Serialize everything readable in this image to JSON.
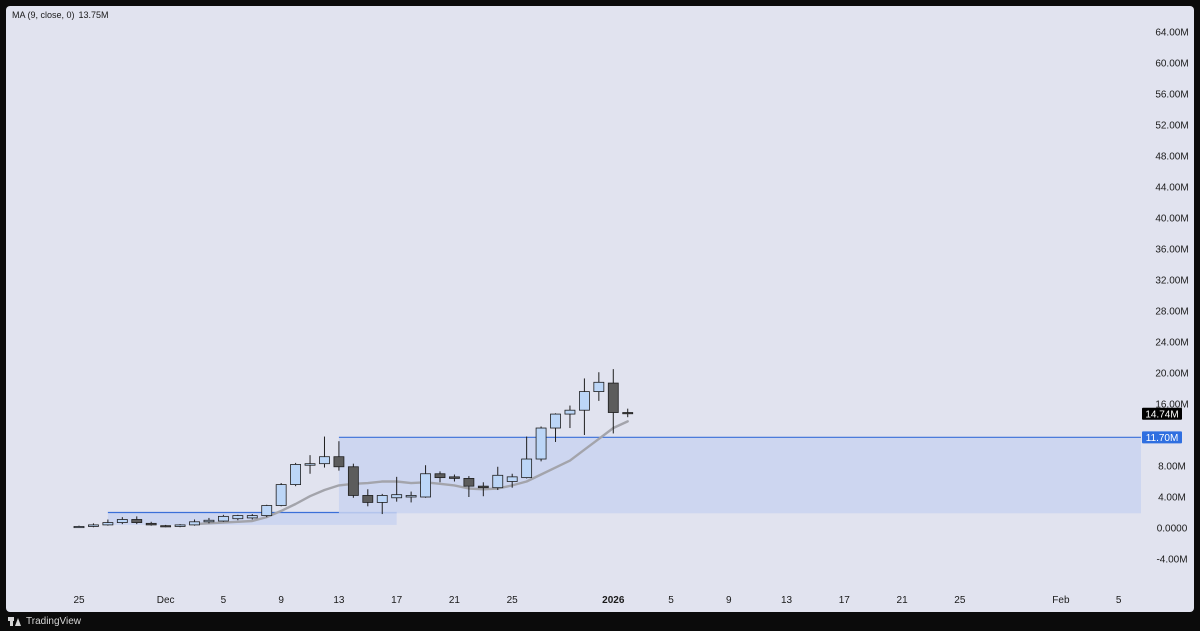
{
  "indicator": {
    "name": "MA (9, close, 0)",
    "value": "13.75M"
  },
  "brand": "TradingView",
  "colors": {
    "up_fill": "#bcd6f7",
    "down_fill": "#5c5c5c",
    "wick": "#1e1e1e",
    "ma_line": "#a3a4ab",
    "zone_fill": "#c9d4f0",
    "zone_line": "#3a6fd8",
    "label_highlight": "#2f6fe0",
    "last_price_bg": "#000000"
  },
  "chart_data": {
    "type": "candlestick",
    "title": "",
    "xlabel": "",
    "ylabel": "",
    "ylim": [
      -6000000,
      66000000
    ],
    "y_ticks": [
      {
        "value": 64000000,
        "label": "64.00M"
      },
      {
        "value": 60000000,
        "label": "60.00M"
      },
      {
        "value": 56000000,
        "label": "56.00M"
      },
      {
        "value": 52000000,
        "label": "52.00M"
      },
      {
        "value": 48000000,
        "label": "48.00M"
      },
      {
        "value": 44000000,
        "label": "44.00M"
      },
      {
        "value": 40000000,
        "label": "40.00M"
      },
      {
        "value": 36000000,
        "label": "36.00M"
      },
      {
        "value": 32000000,
        "label": "32.00M"
      },
      {
        "value": 28000000,
        "label": "28.00M"
      },
      {
        "value": 24000000,
        "label": "24.00M"
      },
      {
        "value": 20000000,
        "label": "20.00M"
      },
      {
        "value": 16000000,
        "label": "16.00M"
      },
      {
        "value": 8000000,
        "label": "8.00M"
      },
      {
        "value": 4000000,
        "label": "4.00M"
      },
      {
        "value": 0,
        "label": "0.0000"
      },
      {
        "value": -4000000,
        "label": "-4.00M"
      }
    ],
    "x_ticks": [
      {
        "date": "2025-11-25",
        "label": "25",
        "bold": false
      },
      {
        "date": "2025-12-01",
        "label": "Dec",
        "bold": false
      },
      {
        "date": "2025-12-05",
        "label": "5",
        "bold": false
      },
      {
        "date": "2025-12-09",
        "label": "9",
        "bold": false
      },
      {
        "date": "2025-12-13",
        "label": "13",
        "bold": false
      },
      {
        "date": "2025-12-17",
        "label": "17",
        "bold": false
      },
      {
        "date": "2025-12-21",
        "label": "21",
        "bold": false
      },
      {
        "date": "2025-12-25",
        "label": "25",
        "bold": false
      },
      {
        "date": "2026-01-01",
        "label": "2026",
        "bold": true
      },
      {
        "date": "2026-01-05",
        "label": "5",
        "bold": false
      },
      {
        "date": "2026-01-09",
        "label": "9",
        "bold": false
      },
      {
        "date": "2026-01-13",
        "label": "13",
        "bold": false
      },
      {
        "date": "2026-01-17",
        "label": "17",
        "bold": false
      },
      {
        "date": "2026-01-21",
        "label": "21",
        "bold": false
      },
      {
        "date": "2026-01-25",
        "label": "25",
        "bold": false
      },
      {
        "date": "2026-02-01",
        "label": "Feb",
        "bold": false
      },
      {
        "date": "2026-02-05",
        "label": "5",
        "bold": false
      }
    ],
    "candles": [
      {
        "date": "2025-11-25",
        "open": 0.1,
        "high": 0.3,
        "low": 0.0,
        "close": 0.2
      },
      {
        "date": "2025-11-26",
        "open": 0.2,
        "high": 0.6,
        "low": 0.1,
        "close": 0.4
      },
      {
        "date": "2025-11-27",
        "open": 0.4,
        "high": 1.1,
        "low": 0.3,
        "close": 0.7
      },
      {
        "date": "2025-11-28",
        "open": 0.7,
        "high": 1.4,
        "low": 0.5,
        "close": 1.1
      },
      {
        "date": "2025-11-29",
        "open": 1.1,
        "high": 1.5,
        "low": 0.5,
        "close": 0.7
      },
      {
        "date": "2025-11-30",
        "open": 0.6,
        "high": 0.8,
        "low": 0.3,
        "close": 0.4
      },
      {
        "date": "2025-12-01",
        "open": 0.3,
        "high": 0.4,
        "low": 0.1,
        "close": 0.2
      },
      {
        "date": "2025-12-02",
        "open": 0.2,
        "high": 0.5,
        "low": 0.1,
        "close": 0.4
      },
      {
        "date": "2025-12-03",
        "open": 0.4,
        "high": 1.1,
        "low": 0.3,
        "close": 0.8
      },
      {
        "date": "2025-12-04",
        "open": 0.8,
        "high": 1.3,
        "low": 0.6,
        "close": 1.0
      },
      {
        "date": "2025-12-05",
        "open": 0.9,
        "high": 1.7,
        "low": 0.8,
        "close": 1.5
      },
      {
        "date": "2025-12-06",
        "open": 1.2,
        "high": 1.7,
        "low": 1.0,
        "close": 1.6
      },
      {
        "date": "2025-12-07",
        "open": 1.3,
        "high": 1.8,
        "low": 1.1,
        "close": 1.6
      },
      {
        "date": "2025-12-08",
        "open": 1.6,
        "high": 3.0,
        "low": 1.4,
        "close": 2.9
      },
      {
        "date": "2025-12-09",
        "open": 2.9,
        "high": 5.8,
        "low": 2.8,
        "close": 5.6
      },
      {
        "date": "2025-12-10",
        "open": 5.6,
        "high": 8.4,
        "low": 5.4,
        "close": 8.2
      },
      {
        "date": "2025-12-11",
        "open": 8.1,
        "high": 9.4,
        "low": 7.0,
        "close": 8.3
      },
      {
        "date": "2025-12-12",
        "open": 8.3,
        "high": 11.8,
        "low": 7.8,
        "close": 9.2
      },
      {
        "date": "2025-12-13",
        "open": 9.2,
        "high": 11.2,
        "low": 7.4,
        "close": 7.9
      },
      {
        "date": "2025-12-14",
        "open": 7.9,
        "high": 8.3,
        "low": 3.9,
        "close": 4.2
      },
      {
        "date": "2025-12-15",
        "open": 4.2,
        "high": 5.0,
        "low": 2.8,
        "close": 3.3
      },
      {
        "date": "2025-12-16",
        "open": 3.3,
        "high": 4.4,
        "low": 1.8,
        "close": 4.2
      },
      {
        "date": "2025-12-17",
        "open": 3.9,
        "high": 6.6,
        "low": 3.4,
        "close": 4.3
      },
      {
        "date": "2025-12-18",
        "open": 4.0,
        "high": 4.7,
        "low": 3.3,
        "close": 4.2
      },
      {
        "date": "2025-12-19",
        "open": 4.0,
        "high": 8.1,
        "low": 3.9,
        "close": 7.0
      },
      {
        "date": "2025-12-20",
        "open": 7.0,
        "high": 7.3,
        "low": 5.9,
        "close": 6.5
      },
      {
        "date": "2025-12-21",
        "open": 6.6,
        "high": 6.9,
        "low": 6.0,
        "close": 6.4
      },
      {
        "date": "2025-12-22",
        "open": 6.4,
        "high": 6.7,
        "low": 4.0,
        "close": 5.4
      },
      {
        "date": "2025-12-23",
        "open": 5.4,
        "high": 5.9,
        "low": 4.1,
        "close": 5.2
      },
      {
        "date": "2025-12-24",
        "open": 5.2,
        "high": 7.9,
        "low": 4.9,
        "close": 6.8
      },
      {
        "date": "2025-12-25",
        "open": 6.0,
        "high": 7.0,
        "low": 5.2,
        "close": 6.6
      },
      {
        "date": "2025-12-26",
        "open": 6.5,
        "high": 11.8,
        "low": 6.4,
        "close": 8.9
      },
      {
        "date": "2025-12-27",
        "open": 8.9,
        "high": 13.1,
        "low": 8.6,
        "close": 12.9
      },
      {
        "date": "2025-12-28",
        "open": 12.9,
        "high": 14.8,
        "low": 11.1,
        "close": 14.7
      },
      {
        "date": "2025-12-29",
        "open": 14.7,
        "high": 15.8,
        "low": 12.9,
        "close": 15.2
      },
      {
        "date": "2025-12-30",
        "open": 15.2,
        "high": 19.3,
        "low": 12.0,
        "close": 17.6
      },
      {
        "date": "2025-12-31",
        "open": 17.6,
        "high": 20.1,
        "low": 16.4,
        "close": 18.8
      },
      {
        "date": "2026-01-01",
        "open": 18.7,
        "high": 20.5,
        "low": 12.2,
        "close": 14.9
      },
      {
        "date": "2026-01-02",
        "open": 14.9,
        "high": 15.4,
        "low": 14.3,
        "close": 14.74
      }
    ],
    "ma": {
      "name": "MA (9, close, 0)",
      "points": [
        {
          "date": "2025-12-03",
          "value": 0.5
        },
        {
          "date": "2025-12-05",
          "value": 0.7
        },
        {
          "date": "2025-12-07",
          "value": 0.9
        },
        {
          "date": "2025-12-08",
          "value": 1.4
        },
        {
          "date": "2025-12-09",
          "value": 2.2
        },
        {
          "date": "2025-12-10",
          "value": 3.1
        },
        {
          "date": "2025-12-11",
          "value": 4.1
        },
        {
          "date": "2025-12-12",
          "value": 4.9
        },
        {
          "date": "2025-12-13",
          "value": 5.5
        },
        {
          "date": "2025-12-14",
          "value": 5.7
        },
        {
          "date": "2025-12-15",
          "value": 5.8
        },
        {
          "date": "2025-12-16",
          "value": 6.0
        },
        {
          "date": "2025-12-17",
          "value": 6.0
        },
        {
          "date": "2025-12-18",
          "value": 5.8
        },
        {
          "date": "2025-12-19",
          "value": 5.9
        },
        {
          "date": "2025-12-20",
          "value": 5.7
        },
        {
          "date": "2025-12-21",
          "value": 5.5
        },
        {
          "date": "2025-12-22",
          "value": 5.1
        },
        {
          "date": "2025-12-23",
          "value": 5.0
        },
        {
          "date": "2025-12-24",
          "value": 5.1
        },
        {
          "date": "2025-12-25",
          "value": 5.5
        },
        {
          "date": "2025-12-26",
          "value": 6.0
        },
        {
          "date": "2025-12-27",
          "value": 6.9
        },
        {
          "date": "2025-12-28",
          "value": 7.8
        },
        {
          "date": "2025-12-29",
          "value": 8.7
        },
        {
          "date": "2025-12-30",
          "value": 10.1
        },
        {
          "date": "2025-12-31",
          "value": 11.5
        },
        {
          "date": "2026-01-01",
          "value": 12.9
        },
        {
          "date": "2026-01-02",
          "value": 13.75
        }
      ]
    },
    "zones": [
      {
        "start": "2025-11-27",
        "end": "2025-12-17",
        "top": 2.0,
        "bottom": 0.4
      },
      {
        "start": "2025-12-13",
        "end": "2026-02-07",
        "top": 11.7,
        "bottom": 1.9
      }
    ],
    "price_labels": [
      {
        "value": 14.74,
        "label": "14.74M",
        "style": "last"
      },
      {
        "value": 11.7,
        "label": "11.70M",
        "style": "highlight"
      }
    ],
    "units": "M"
  }
}
